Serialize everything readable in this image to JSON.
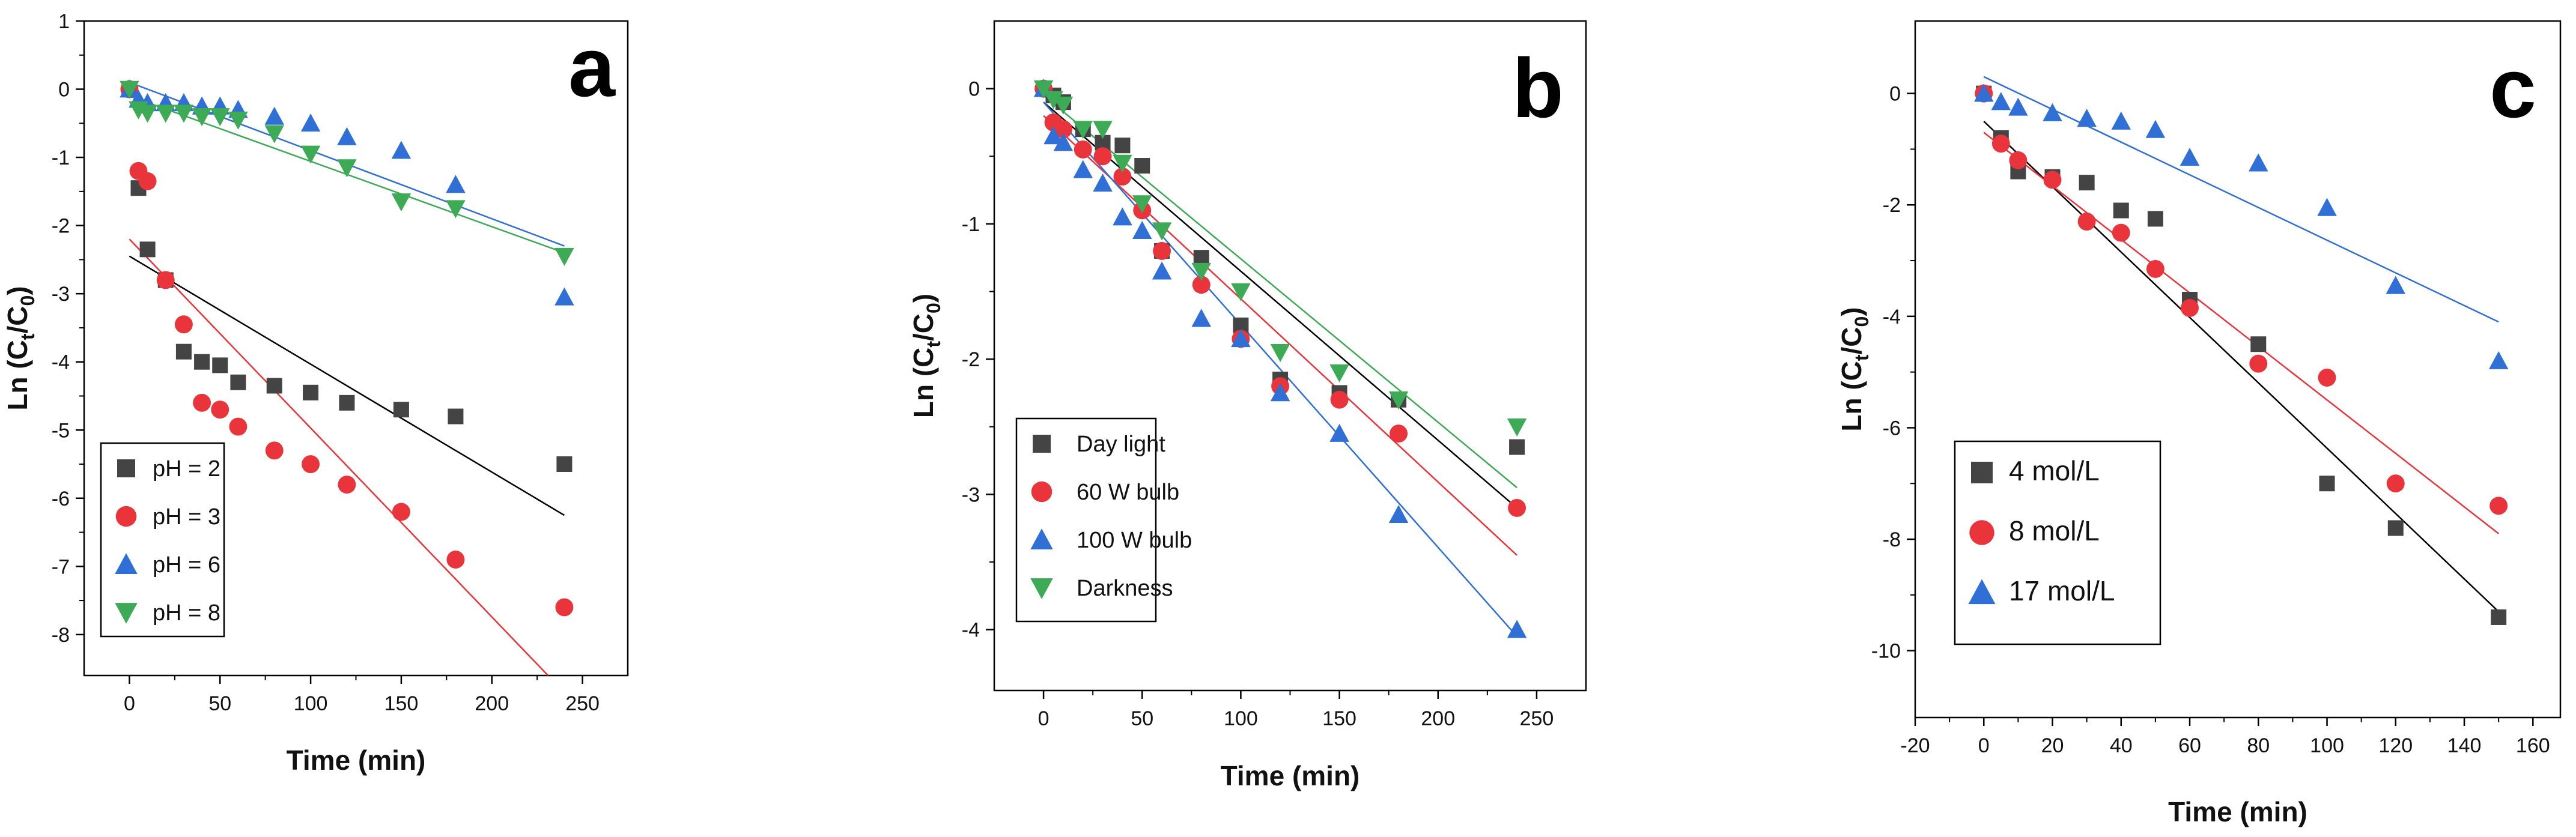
{
  "colors": {
    "black": "#444444",
    "red": "#e8343a",
    "blue": "#2f6fd6",
    "green": "#3daa55",
    "fit_black": "#000000",
    "fit_red": "#e8343a",
    "fit_blue": "#2f6fd6",
    "fit_green": "#3daa55"
  },
  "chart_data": [
    {
      "type": "scatter",
      "panel_label": "a",
      "title": "",
      "xlabel": "Time (min)",
      "ylabel": "Ln (C",
      "ylabel_sub_t": "t",
      "ylabel_mid": "/C",
      "ylabel_sub_0": "0",
      "ylabel_end": ")",
      "xlim": [
        -25,
        275
      ],
      "ylim": [
        -8.6,
        1
      ],
      "xticks": [
        0,
        50,
        100,
        150,
        200,
        250
      ],
      "xtick_labels": [
        "0",
        "50",
        "100",
        "150",
        "200",
        "250"
      ],
      "yticks": [
        1,
        0,
        -1,
        -2,
        -3,
        -4,
        -5,
        -6,
        -7,
        -8
      ],
      "ytick_labels": [
        "1",
        "0",
        "-1",
        "-2",
        "-3",
        "-4",
        "-5",
        "-6",
        "-7",
        "-8"
      ],
      "legend_position": "bottom-left",
      "series": [
        {
          "name": "pH = 2",
          "marker": "square",
          "color_key": "black",
          "x": [
            0,
            5,
            10,
            20,
            30,
            40,
            50,
            60,
            80,
            100,
            120,
            150,
            180,
            240
          ],
          "y": [
            0,
            -1.45,
            -2.35,
            -2.8,
            -3.85,
            -4.0,
            -4.05,
            -4.3,
            -4.35,
            -4.45,
            -4.6,
            -4.7,
            -4.8,
            -5.5
          ],
          "fit": {
            "x": [
              0,
              240
            ],
            "y": [
              -2.45,
              -6.25
            ],
            "color_key": "fit_black"
          }
        },
        {
          "name": "pH = 3",
          "marker": "circle",
          "color_key": "red",
          "x": [
            0,
            5,
            10,
            20,
            30,
            40,
            50,
            60,
            80,
            100,
            120,
            150,
            180,
            240
          ],
          "y": [
            0,
            -1.2,
            -1.35,
            -2.8,
            -3.45,
            -4.6,
            -4.7,
            -4.95,
            -5.3,
            -5.5,
            -5.8,
            -6.2,
            -6.9,
            -7.6
          ],
          "fit": {
            "x": [
              0,
              231
            ],
            "y": [
              -2.2,
              -8.6
            ],
            "color_key": "fit_red"
          }
        },
        {
          "name": "pH = 6",
          "marker": "triangle-up",
          "color_key": "blue",
          "x": [
            0,
            5,
            10,
            20,
            30,
            40,
            50,
            60,
            80,
            100,
            120,
            150,
            180,
            240
          ],
          "y": [
            0,
            -0.15,
            -0.2,
            -0.2,
            -0.2,
            -0.25,
            -0.25,
            -0.3,
            -0.4,
            -0.5,
            -0.7,
            -0.9,
            -1.4,
            -3.05
          ],
          "fit": {
            "x": [
              0,
              240
            ],
            "y": [
              0.1,
              -2.3
            ],
            "color_key": "fit_blue"
          }
        },
        {
          "name": "pH = 8",
          "marker": "triangle-down",
          "color_key": "green",
          "x": [
            0,
            5,
            10,
            20,
            30,
            40,
            50,
            60,
            80,
            100,
            120,
            150,
            180,
            240
          ],
          "y": [
            0,
            -0.3,
            -0.35,
            -0.35,
            -0.35,
            -0.4,
            -0.4,
            -0.45,
            -0.65,
            -0.95,
            -1.15,
            -1.65,
            -1.75,
            -2.45
          ],
          "fit": {
            "x": [
              0,
              240
            ],
            "y": [
              -0.1,
              -2.4
            ],
            "color_key": "fit_green"
          }
        }
      ]
    },
    {
      "type": "scatter",
      "panel_label": "b",
      "title": "",
      "xlabel": "Time (min)",
      "ylabel": "Ln (C",
      "ylabel_sub_t": "t",
      "ylabel_mid": "/C",
      "ylabel_sub_0": "0",
      "ylabel_end": ")",
      "xlim": [
        -25,
        275
      ],
      "ylim": [
        -4.45,
        0.5
      ],
      "xticks": [
        0,
        50,
        100,
        150,
        200,
        250
      ],
      "xtick_labels": [
        "0",
        "50",
        "100",
        "150",
        "200",
        "250"
      ],
      "yticks": [
        0,
        -1,
        -2,
        -3,
        -4
      ],
      "ytick_labels": [
        "0",
        "-1",
        "-2",
        "-3",
        "-4"
      ],
      "legend_position": "bottom-left",
      "series": [
        {
          "name": "Day light",
          "marker": "square",
          "color_key": "black",
          "x": [
            0,
            5,
            10,
            20,
            30,
            40,
            50,
            60,
            80,
            100,
            120,
            150,
            180,
            240
          ],
          "y": [
            0,
            -0.05,
            -0.1,
            -0.3,
            -0.4,
            -0.42,
            -0.57,
            -1.2,
            -1.25,
            -1.75,
            -2.15,
            -2.25,
            -2.3,
            -2.65
          ],
          "fit": {
            "x": [
              0,
              240
            ],
            "y": [
              -0.1,
              -3.1
            ],
            "color_key": "fit_black"
          }
        },
        {
          "name": "60 W bulb",
          "marker": "circle",
          "color_key": "red",
          "x": [
            0,
            5,
            10,
            20,
            30,
            40,
            50,
            60,
            80,
            100,
            120,
            150,
            180,
            240
          ],
          "y": [
            0,
            -0.25,
            -0.3,
            -0.45,
            -0.5,
            -0.65,
            -0.9,
            -1.2,
            -1.45,
            -1.85,
            -2.2,
            -2.3,
            -2.55,
            -3.1
          ],
          "fit": {
            "x": [
              0,
              240
            ],
            "y": [
              -0.2,
              -3.45
            ],
            "color_key": "fit_red"
          }
        },
        {
          "name": "100 W bulb",
          "marker": "triangle-up",
          "color_key": "blue",
          "x": [
            0,
            5,
            10,
            20,
            30,
            40,
            50,
            60,
            80,
            100,
            120,
            150,
            180,
            240
          ],
          "y": [
            0,
            -0.35,
            -0.4,
            -0.6,
            -0.7,
            -0.95,
            -1.05,
            -1.35,
            -1.7,
            -1.85,
            -2.25,
            -2.55,
            -3.15,
            -4.0
          ],
          "fit": {
            "x": [
              0,
              240
            ],
            "y": [
              -0.1,
              -4.05
            ],
            "color_key": "fit_blue"
          }
        },
        {
          "name": "Darkness",
          "marker": "triangle-down",
          "color_key": "green",
          "x": [
            0,
            5,
            10,
            20,
            30,
            40,
            50,
            60,
            80,
            100,
            120,
            150,
            180,
            240
          ],
          "y": [
            0,
            -0.08,
            -0.12,
            -0.3,
            -0.3,
            -0.55,
            -0.85,
            -1.05,
            -1.35,
            -1.5,
            -1.95,
            -2.1,
            -2.3,
            -2.5
          ],
          "fit": {
            "x": [
              0,
              240
            ],
            "y": [
              -0.05,
              -2.95
            ],
            "color_key": "fit_green"
          }
        }
      ]
    },
    {
      "type": "scatter",
      "panel_label": "c",
      "title": "",
      "xlabel": "Time (min)",
      "ylabel": "Ln (C",
      "ylabel_sub_t": "t",
      "ylabel_mid": "/C",
      "ylabel_sub_0": "0",
      "ylabel_end": ")",
      "xlim": [
        -20,
        168
      ],
      "ylim": [
        -11.2,
        1.3
      ],
      "xticks": [
        -20,
        0,
        20,
        40,
        60,
        80,
        100,
        120,
        140,
        160
      ],
      "xtick_labels": [
        "-20",
        "0",
        "20",
        "40",
        "60",
        "80",
        "100",
        "120",
        "140",
        "160"
      ],
      "yticks": [
        0,
        -2,
        -4,
        -6,
        -8,
        -10
      ],
      "ytick_labels": [
        "0",
        "-2",
        "-4",
        "-6",
        "-8",
        "-10"
      ],
      "legend_position": "bottom-left",
      "series": [
        {
          "name": "4 mol/L",
          "marker": "square",
          "color_key": "black",
          "x": [
            0,
            5,
            10,
            20,
            30,
            40,
            50,
            60,
            80,
            100,
            120,
            150
          ],
          "y": [
            0,
            -0.8,
            -1.4,
            -1.5,
            -1.6,
            -2.1,
            -2.25,
            -3.7,
            -4.5,
            -7.0,
            -7.8,
            -9.4
          ],
          "fit": {
            "x": [
              0,
              150
            ],
            "y": [
              -0.5,
              -9.3
            ],
            "color_key": "fit_black"
          }
        },
        {
          "name": "8 mol/L",
          "marker": "circle",
          "color_key": "red",
          "x": [
            0,
            5,
            10,
            20,
            30,
            40,
            50,
            60,
            80,
            100,
            120,
            150
          ],
          "y": [
            0,
            -0.9,
            -1.2,
            -1.55,
            -2.3,
            -2.5,
            -3.15,
            -3.85,
            -4.85,
            -5.1,
            -7.0,
            -7.4
          ],
          "fit": {
            "x": [
              0,
              150
            ],
            "y": [
              -0.7,
              -7.9
            ],
            "color_key": "fit_red"
          }
        },
        {
          "name": "17 mol/L",
          "marker": "triangle-up",
          "color_key": "blue",
          "x": [
            0,
            5,
            10,
            20,
            30,
            40,
            50,
            60,
            80,
            100,
            120,
            150
          ],
          "y": [
            0,
            -0.15,
            -0.25,
            -0.35,
            -0.45,
            -0.5,
            -0.65,
            -1.15,
            -1.25,
            -2.05,
            -3.45,
            -4.8
          ],
          "fit": {
            "x": [
              0,
              150
            ],
            "y": [
              0.3,
              -4.1
            ],
            "color_key": "fit_blue"
          }
        }
      ]
    }
  ]
}
